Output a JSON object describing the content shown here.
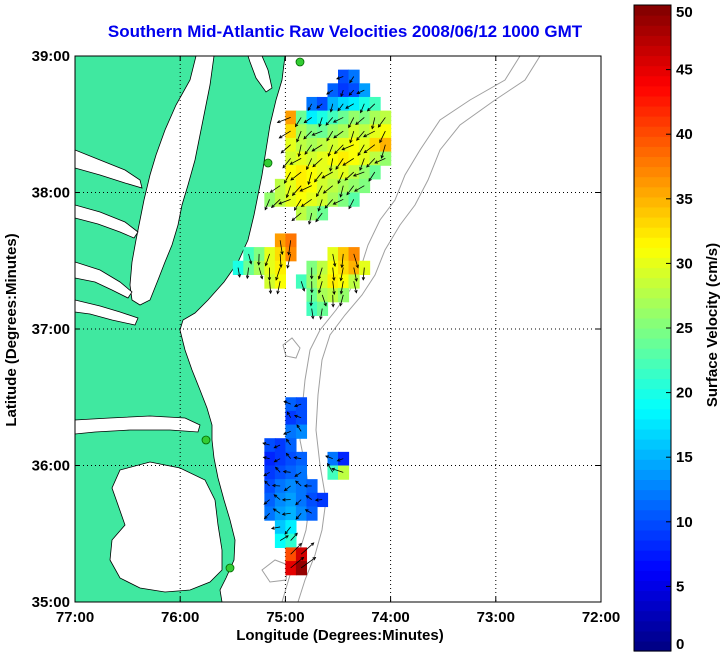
{
  "chart_data": {
    "type": "heatmap",
    "title": "Southern Mid-Atlantic Raw Velocities 2008/06/12 1000 GMT",
    "xlabel": "Longitude (Degrees:Minutes)",
    "ylabel": "Latitude (Degrees:Minutes)",
    "colorbar_label": "Surface Velocity (cm/s)",
    "xlim": [
      -77,
      -72
    ],
    "ylim": [
      35,
      39
    ],
    "x_ticks": [
      "77:00",
      "76:00",
      "75:00",
      "74:00",
      "73:00",
      "72:00"
    ],
    "y_ticks": [
      "39:00",
      "38:00",
      "37:00",
      "36:00",
      "35:00"
    ],
    "colorbar_range": [
      0,
      50
    ],
    "colorbar_ticks": [
      "0",
      "5",
      "10",
      "15",
      "20",
      "25",
      "30",
      "35",
      "40",
      "45",
      "50"
    ],
    "grid": "dotted",
    "colormap": [
      "#0000ff",
      "#00ffff",
      "#ffff00",
      "#ff0000",
      "#800000"
    ],
    "land_color": "#40e8a0",
    "vector_color": "#000000",
    "cells": [
      {
        "lon": -74.45,
        "lat": 38.85,
        "v": 10
      },
      {
        "lon": -74.35,
        "lat": 38.85,
        "v": 12
      },
      {
        "lon": -74.55,
        "lat": 38.75,
        "v": 11
      },
      {
        "lon": -74.45,
        "lat": 38.75,
        "v": 9
      },
      {
        "lon": -74.35,
        "lat": 38.75,
        "v": 10
      },
      {
        "lon": -74.25,
        "lat": 38.75,
        "v": 14
      },
      {
        "lon": -74.75,
        "lat": 38.65,
        "v": 12
      },
      {
        "lon": -74.65,
        "lat": 38.65,
        "v": 10
      },
      {
        "lon": -74.55,
        "lat": 38.65,
        "v": 15
      },
      {
        "lon": -74.45,
        "lat": 38.65,
        "v": 17
      },
      {
        "lon": -74.35,
        "lat": 38.65,
        "v": 18
      },
      {
        "lon": -74.25,
        "lat": 38.65,
        "v": 20
      },
      {
        "lon": -74.15,
        "lat": 38.65,
        "v": 22
      },
      {
        "lon": -74.95,
        "lat": 38.55,
        "v": 36
      },
      {
        "lon": -74.85,
        "lat": 38.55,
        "v": 24
      },
      {
        "lon": -74.75,
        "lat": 38.55,
        "v": 18
      },
      {
        "lon": -74.65,
        "lat": 38.55,
        "v": 20
      },
      {
        "lon": -74.55,
        "lat": 38.55,
        "v": 22
      },
      {
        "lon": -74.45,
        "lat": 38.55,
        "v": 24
      },
      {
        "lon": -74.35,
        "lat": 38.55,
        "v": 26
      },
      {
        "lon": -74.25,
        "lat": 38.55,
        "v": 25
      },
      {
        "lon": -74.15,
        "lat": 38.55,
        "v": 27
      },
      {
        "lon": -74.05,
        "lat": 38.55,
        "v": 28
      },
      {
        "lon": -74.95,
        "lat": 38.45,
        "v": 33
      },
      {
        "lon": -74.85,
        "lat": 38.45,
        "v": 27
      },
      {
        "lon": -74.75,
        "lat": 38.45,
        "v": 25
      },
      {
        "lon": -74.65,
        "lat": 38.45,
        "v": 24
      },
      {
        "lon": -74.55,
        "lat": 38.45,
        "v": 26
      },
      {
        "lon": -74.45,
        "lat": 38.45,
        "v": 27
      },
      {
        "lon": -74.35,
        "lat": 38.45,
        "v": 29
      },
      {
        "lon": -74.25,
        "lat": 38.45,
        "v": 28
      },
      {
        "lon": -74.15,
        "lat": 38.45,
        "v": 30
      },
      {
        "lon": -74.05,
        "lat": 38.45,
        "v": 31
      },
      {
        "lon": -74.95,
        "lat": 38.35,
        "v": 30
      },
      {
        "lon": -74.85,
        "lat": 38.35,
        "v": 28
      },
      {
        "lon": -74.75,
        "lat": 38.35,
        "v": 27
      },
      {
        "lon": -74.65,
        "lat": 38.35,
        "v": 28
      },
      {
        "lon": -74.55,
        "lat": 38.35,
        "v": 29
      },
      {
        "lon": -74.45,
        "lat": 38.35,
        "v": 30
      },
      {
        "lon": -74.35,
        "lat": 38.35,
        "v": 31
      },
      {
        "lon": -74.25,
        "lat": 38.35,
        "v": 30
      },
      {
        "lon": -74.15,
        "lat": 38.35,
        "v": 33
      },
      {
        "lon": -74.05,
        "lat": 38.35,
        "v": 35
      },
      {
        "lon": -74.95,
        "lat": 38.25,
        "v": 29
      },
      {
        "lon": -74.85,
        "lat": 38.25,
        "v": 30
      },
      {
        "lon": -74.75,
        "lat": 38.25,
        "v": 29
      },
      {
        "lon": -74.65,
        "lat": 38.25,
        "v": 30
      },
      {
        "lon": -74.55,
        "lat": 38.25,
        "v": 31
      },
      {
        "lon": -74.45,
        "lat": 38.25,
        "v": 32
      },
      {
        "lon": -74.35,
        "lat": 38.25,
        "v": 31
      },
      {
        "lon": -74.25,
        "lat": 38.25,
        "v": 30
      },
      {
        "lon": -74.15,
        "lat": 38.25,
        "v": 28
      },
      {
        "lon": -74.05,
        "lat": 38.25,
        "v": 26
      },
      {
        "lon": -74.95,
        "lat": 38.15,
        "v": 31
      },
      {
        "lon": -74.85,
        "lat": 38.15,
        "v": 32
      },
      {
        "lon": -74.75,
        "lat": 38.15,
        "v": 31
      },
      {
        "lon": -74.65,
        "lat": 38.15,
        "v": 30
      },
      {
        "lon": -74.55,
        "lat": 38.15,
        "v": 29
      },
      {
        "lon": -74.45,
        "lat": 38.15,
        "v": 30
      },
      {
        "lon": -74.35,
        "lat": 38.15,
        "v": 28
      },
      {
        "lon": -74.25,
        "lat": 38.15,
        "v": 26
      },
      {
        "lon": -74.15,
        "lat": 38.15,
        "v": 24
      },
      {
        "lon": -75.05,
        "lat": 38.05,
        "v": 28
      },
      {
        "lon": -74.95,
        "lat": 38.05,
        "v": 30
      },
      {
        "lon": -74.85,
        "lat": 38.05,
        "v": 32
      },
      {
        "lon": -74.75,
        "lat": 38.05,
        "v": 31
      },
      {
        "lon": -74.65,
        "lat": 38.05,
        "v": 29
      },
      {
        "lon": -74.55,
        "lat": 38.05,
        "v": 28
      },
      {
        "lon": -74.45,
        "lat": 38.05,
        "v": 27
      },
      {
        "lon": -74.35,
        "lat": 38.05,
        "v": 26
      },
      {
        "lon": -74.25,
        "lat": 38.05,
        "v": 25
      },
      {
        "lon": -75.15,
        "lat": 37.95,
        "v": 26
      },
      {
        "lon": -75.05,
        "lat": 37.95,
        "v": 28
      },
      {
        "lon": -74.95,
        "lat": 37.95,
        "v": 30
      },
      {
        "lon": -74.85,
        "lat": 37.95,
        "v": 31
      },
      {
        "lon": -74.75,
        "lat": 37.95,
        "v": 30
      },
      {
        "lon": -74.65,
        "lat": 37.95,
        "v": 29
      },
      {
        "lon": -74.55,
        "lat": 37.95,
        "v": 27
      },
      {
        "lon": -74.45,
        "lat": 37.95,
        "v": 25
      },
      {
        "lon": -74.35,
        "lat": 37.95,
        "v": 23
      },
      {
        "lon": -74.85,
        "lat": 37.85,
        "v": 28
      },
      {
        "lon": -74.75,
        "lat": 37.85,
        "v": 26
      },
      {
        "lon": -74.65,
        "lat": 37.85,
        "v": 24
      },
      {
        "lon": -75.05,
        "lat": 37.65,
        "v": 36
      },
      {
        "lon": -74.95,
        "lat": 37.65,
        "v": 38
      },
      {
        "lon": -75.35,
        "lat": 37.55,
        "v": 22
      },
      {
        "lon": -75.25,
        "lat": 37.55,
        "v": 25
      },
      {
        "lon": -75.15,
        "lat": 37.55,
        "v": 30
      },
      {
        "lon": -75.05,
        "lat": 37.55,
        "v": 33
      },
      {
        "lon": -74.95,
        "lat": 37.55,
        "v": 37
      },
      {
        "lon": -75.45,
        "lat": 37.45,
        "v": 20
      },
      {
        "lon": -75.35,
        "lat": 37.45,
        "v": 24
      },
      {
        "lon": -75.25,
        "lat": 37.45,
        "v": 27
      },
      {
        "lon": -75.15,
        "lat": 37.45,
        "v": 30
      },
      {
        "lon": -75.05,
        "lat": 37.45,
        "v": 32
      },
      {
        "lon": -75.15,
        "lat": 37.35,
        "v": 29
      },
      {
        "lon": -75.05,
        "lat": 37.35,
        "v": 31
      },
      {
        "lon": -74.55,
        "lat": 37.55,
        "v": 30
      },
      {
        "lon": -74.45,
        "lat": 37.55,
        "v": 34
      },
      {
        "lon": -74.35,
        "lat": 37.55,
        "v": 37
      },
      {
        "lon": -74.75,
        "lat": 37.45,
        "v": 25
      },
      {
        "lon": -74.65,
        "lat": 37.45,
        "v": 28
      },
      {
        "lon": -74.55,
        "lat": 37.45,
        "v": 31
      },
      {
        "lon": -74.45,
        "lat": 37.45,
        "v": 33
      },
      {
        "lon": -74.35,
        "lat": 37.45,
        "v": 35
      },
      {
        "lon": -74.25,
        "lat": 37.45,
        "v": 30
      },
      {
        "lon": -74.85,
        "lat": 37.35,
        "v": 22
      },
      {
        "lon": -74.75,
        "lat": 37.35,
        "v": 26
      },
      {
        "lon": -74.65,
        "lat": 37.35,
        "v": 29
      },
      {
        "lon": -74.55,
        "lat": 37.35,
        "v": 32
      },
      {
        "lon": -74.45,
        "lat": 37.35,
        "v": 31
      },
      {
        "lon": -74.35,
        "lat": 37.35,
        "v": 28
      },
      {
        "lon": -74.75,
        "lat": 37.25,
        "v": 24
      },
      {
        "lon": -74.65,
        "lat": 37.25,
        "v": 27
      },
      {
        "lon": -74.55,
        "lat": 37.25,
        "v": 28
      },
      {
        "lon": -74.45,
        "lat": 37.25,
        "v": 26
      },
      {
        "lon": -74.75,
        "lat": 37.15,
        "v": 22
      },
      {
        "lon": -74.65,
        "lat": 37.15,
        "v": 24
      },
      {
        "lon": -74.95,
        "lat": 36.45,
        "v": 11
      },
      {
        "lon": -74.85,
        "lat": 36.45,
        "v": 10
      },
      {
        "lon": -74.95,
        "lat": 36.35,
        "v": 9
      },
      {
        "lon": -74.85,
        "lat": 36.35,
        "v": 10
      },
      {
        "lon": -74.95,
        "lat": 36.25,
        "v": 12
      },
      {
        "lon": -74.85,
        "lat": 36.25,
        "v": 13
      },
      {
        "lon": -75.15,
        "lat": 36.15,
        "v": 10
      },
      {
        "lon": -75.05,
        "lat": 36.15,
        "v": 9
      },
      {
        "lon": -74.95,
        "lat": 36.15,
        "v": 11
      },
      {
        "lon": -75.15,
        "lat": 36.05,
        "v": 8
      },
      {
        "lon": -75.05,
        "lat": 36.05,
        "v": 9
      },
      {
        "lon": -74.95,
        "lat": 36.05,
        "v": 10
      },
      {
        "lon": -74.85,
        "lat": 36.05,
        "v": 11
      },
      {
        "lon": -75.15,
        "lat": 35.95,
        "v": 9
      },
      {
        "lon": -75.05,
        "lat": 35.95,
        "v": 10
      },
      {
        "lon": -74.95,
        "lat": 35.95,
        "v": 11
      },
      {
        "lon": -74.85,
        "lat": 35.95,
        "v": 12
      },
      {
        "lon": -75.15,
        "lat": 35.85,
        "v": 10
      },
      {
        "lon": -75.05,
        "lat": 35.85,
        "v": 12
      },
      {
        "lon": -74.95,
        "lat": 35.85,
        "v": 13
      },
      {
        "lon": -74.85,
        "lat": 35.85,
        "v": 12
      },
      {
        "lon": -74.75,
        "lat": 35.85,
        "v": 11
      },
      {
        "lon": -75.15,
        "lat": 35.75,
        "v": 11
      },
      {
        "lon": -75.05,
        "lat": 35.75,
        "v": 13
      },
      {
        "lon": -74.95,
        "lat": 35.75,
        "v": 14
      },
      {
        "lon": -74.85,
        "lat": 35.75,
        "v": 12
      },
      {
        "lon": -74.75,
        "lat": 35.75,
        "v": 10
      },
      {
        "lon": -74.65,
        "lat": 35.75,
        "v": 9
      },
      {
        "lon": -75.15,
        "lat": 35.65,
        "v": 12
      },
      {
        "lon": -75.05,
        "lat": 35.65,
        "v": 14
      },
      {
        "lon": -74.95,
        "lat": 35.65,
        "v": 15
      },
      {
        "lon": -74.85,
        "lat": 35.65,
        "v": 13
      },
      {
        "lon": -74.75,
        "lat": 35.65,
        "v": 11
      },
      {
        "lon": -75.05,
        "lat": 35.55,
        "v": 16
      },
      {
        "lon": -74.95,
        "lat": 35.55,
        "v": 18
      },
      {
        "lon": -75.05,
        "lat": 35.45,
        "v": 19
      },
      {
        "lon": -74.95,
        "lat": 35.45,
        "v": 21
      },
      {
        "lon": -74.95,
        "lat": 35.35,
        "v": 40
      },
      {
        "lon": -74.85,
        "lat": 35.35,
        "v": 46
      },
      {
        "lon": -74.95,
        "lat": 35.25,
        "v": 45
      },
      {
        "lon": -74.85,
        "lat": 35.25,
        "v": 49
      },
      {
        "lon": -74.55,
        "lat": 36.05,
        "v": 12
      },
      {
        "lon": -74.45,
        "lat": 36.05,
        "v": 8
      },
      {
        "lon": -74.55,
        "lat": 35.95,
        "v": 22
      },
      {
        "lon": -74.45,
        "lat": 35.95,
        "v": 28
      }
    ]
  }
}
